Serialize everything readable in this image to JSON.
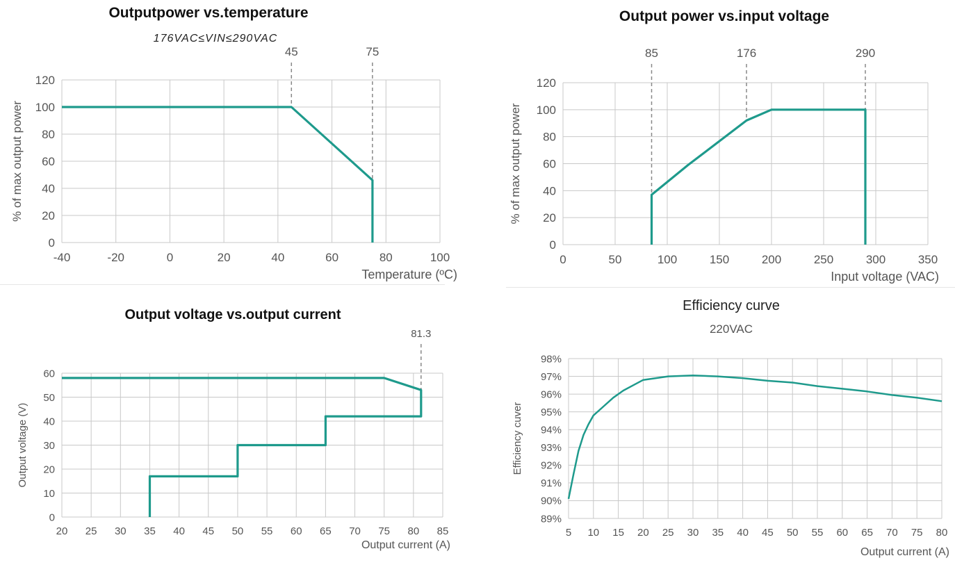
{
  "colors": {
    "line": "#1e9a8c",
    "grid": "#c8c8c8",
    "axis_text": "#555555",
    "ref_line": "#888888"
  },
  "chart_data": [
    {
      "id": "temp",
      "type": "line",
      "title": "Outputpower vs.temperature",
      "subtitle": "176VAC≤VIN≤290VAC",
      "xlabel": "Temperature (ºC)",
      "ylabel": "% of max output power",
      "xlim": [
        -40,
        100
      ],
      "ylim": [
        0,
        120
      ],
      "xticks": [
        -40,
        -20,
        0,
        20,
        40,
        60,
        80,
        100
      ],
      "yticks": [
        0,
        20,
        40,
        60,
        80,
        100,
        120
      ],
      "grid": true,
      "ref_lines": [
        {
          "x": 45,
          "label": "45"
        },
        {
          "x": 75,
          "label": "75"
        }
      ],
      "series": [
        {
          "x": [
            -40,
            45,
            75,
            75
          ],
          "y": [
            100,
            100,
            46,
            0
          ]
        }
      ]
    },
    {
      "id": "vin",
      "type": "line",
      "title": "Output power vs.input voltage",
      "subtitle": "",
      "xlabel": "Input voltage (VAC)",
      "ylabel": "% of max output power",
      "xlim": [
        0,
        350
      ],
      "ylim": [
        0,
        120
      ],
      "xticks": [
        0,
        50,
        100,
        150,
        200,
        250,
        300,
        350
      ],
      "yticks": [
        0,
        20,
        40,
        60,
        80,
        100,
        120
      ],
      "grid": true,
      "ref_lines": [
        {
          "x": 85,
          "label": "85"
        },
        {
          "x": 176,
          "label": "176"
        },
        {
          "x": 290,
          "label": "290"
        }
      ],
      "series": [
        {
          "x": [
            85,
            85,
            120,
            176,
            200,
            290,
            290
          ],
          "y": [
            0,
            37,
            59,
            92,
            100,
            100,
            0
          ]
        }
      ]
    },
    {
      "id": "vout",
      "type": "line",
      "title": "Output voltage vs.output current",
      "subtitle": "",
      "xlabel": "Output current (A)",
      "ylabel": "Output voltage (V)",
      "xlim": [
        20,
        85
      ],
      "ylim": [
        0,
        60
      ],
      "xticks": [
        20,
        25,
        30,
        35,
        40,
        45,
        50,
        55,
        60,
        65,
        70,
        75,
        80,
        85
      ],
      "yticks": [
        0,
        10,
        20,
        30,
        40,
        50,
        60
      ],
      "grid": true,
      "ref_lines": [
        {
          "x": 81.3,
          "label": "81.3"
        }
      ],
      "series": [
        {
          "x": [
            20,
            75,
            81.3,
            81.3,
            65,
            65,
            50,
            50,
            35,
            35
          ],
          "y": [
            58,
            58,
            53,
            42,
            42,
            30,
            30,
            17,
            17,
            0
          ]
        }
      ]
    },
    {
      "id": "eff",
      "type": "line",
      "title": "Efficiency curve",
      "subtitle": "220VAC",
      "xlabel": "Output current (A)",
      "ylabel": "Efficiency  cuver",
      "xlim": [
        5,
        80
      ],
      "ylim": [
        89,
        98
      ],
      "xticks": [
        5,
        10,
        15,
        20,
        25,
        30,
        35,
        40,
        45,
        50,
        55,
        60,
        65,
        70,
        75,
        80
      ],
      "yticks": [
        89,
        90,
        91,
        92,
        93,
        94,
        95,
        96,
        97,
        98
      ],
      "ytick_suffix": "%",
      "grid": true,
      "ref_lines": [],
      "series": [
        {
          "x": [
            5,
            6,
            7,
            8,
            9,
            10,
            12,
            14,
            16,
            18,
            20,
            25,
            30,
            35,
            40,
            45,
            50,
            55,
            60,
            65,
            70,
            75,
            80
          ],
          "y": [
            90.1,
            91.5,
            92.8,
            93.7,
            94.3,
            94.8,
            95.3,
            95.8,
            96.2,
            96.5,
            96.8,
            97.0,
            97.05,
            97.0,
            96.9,
            96.75,
            96.65,
            96.45,
            96.3,
            96.15,
            95.95,
            95.8,
            95.6
          ]
        }
      ]
    }
  ]
}
